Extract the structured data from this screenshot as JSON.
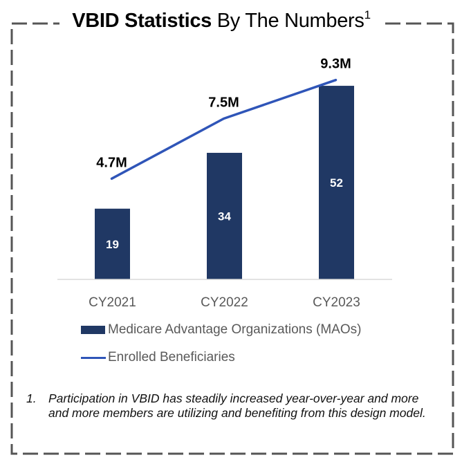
{
  "title": {
    "bold": "VBID Statistics",
    "regular": "By The Numbers",
    "superscript": "1"
  },
  "colors": {
    "bar": "#203864",
    "line": "#2F55B8",
    "axis_text": "#595959",
    "border": "#555555"
  },
  "chart_data": {
    "type": "bar",
    "title": "VBID Statistics By The Numbers",
    "categories": [
      "CY2021",
      "CY2022",
      "CY2023"
    ],
    "series": [
      {
        "name": "Medicare Advantage Organizations (MAOs)",
        "type": "bar",
        "values": [
          19,
          34,
          52
        ],
        "labels": [
          "19",
          "34",
          "52"
        ],
        "ylim": [
          0,
          60
        ]
      },
      {
        "name": "Enrolled Beneficiaries",
        "type": "line",
        "values": [
          4.7,
          7.5,
          9.3
        ],
        "unit": "M",
        "labels": [
          "4.7M",
          "7.5M",
          "9.3M"
        ],
        "ylim": [
          0,
          11
        ]
      }
    ],
    "xlabel": "",
    "ylabel": "",
    "grid": false,
    "legend": "bottom"
  },
  "legend": {
    "items": [
      {
        "label": "Medicare Advantage Organizations (MAOs)",
        "kind": "bar"
      },
      {
        "label": "Enrolled Beneficiaries",
        "kind": "line"
      }
    ]
  },
  "footnote": {
    "number": "1.",
    "text": "Participation in VBID has steadily increased year-over-year and more and more members are utilizing and benefiting from this design model."
  }
}
